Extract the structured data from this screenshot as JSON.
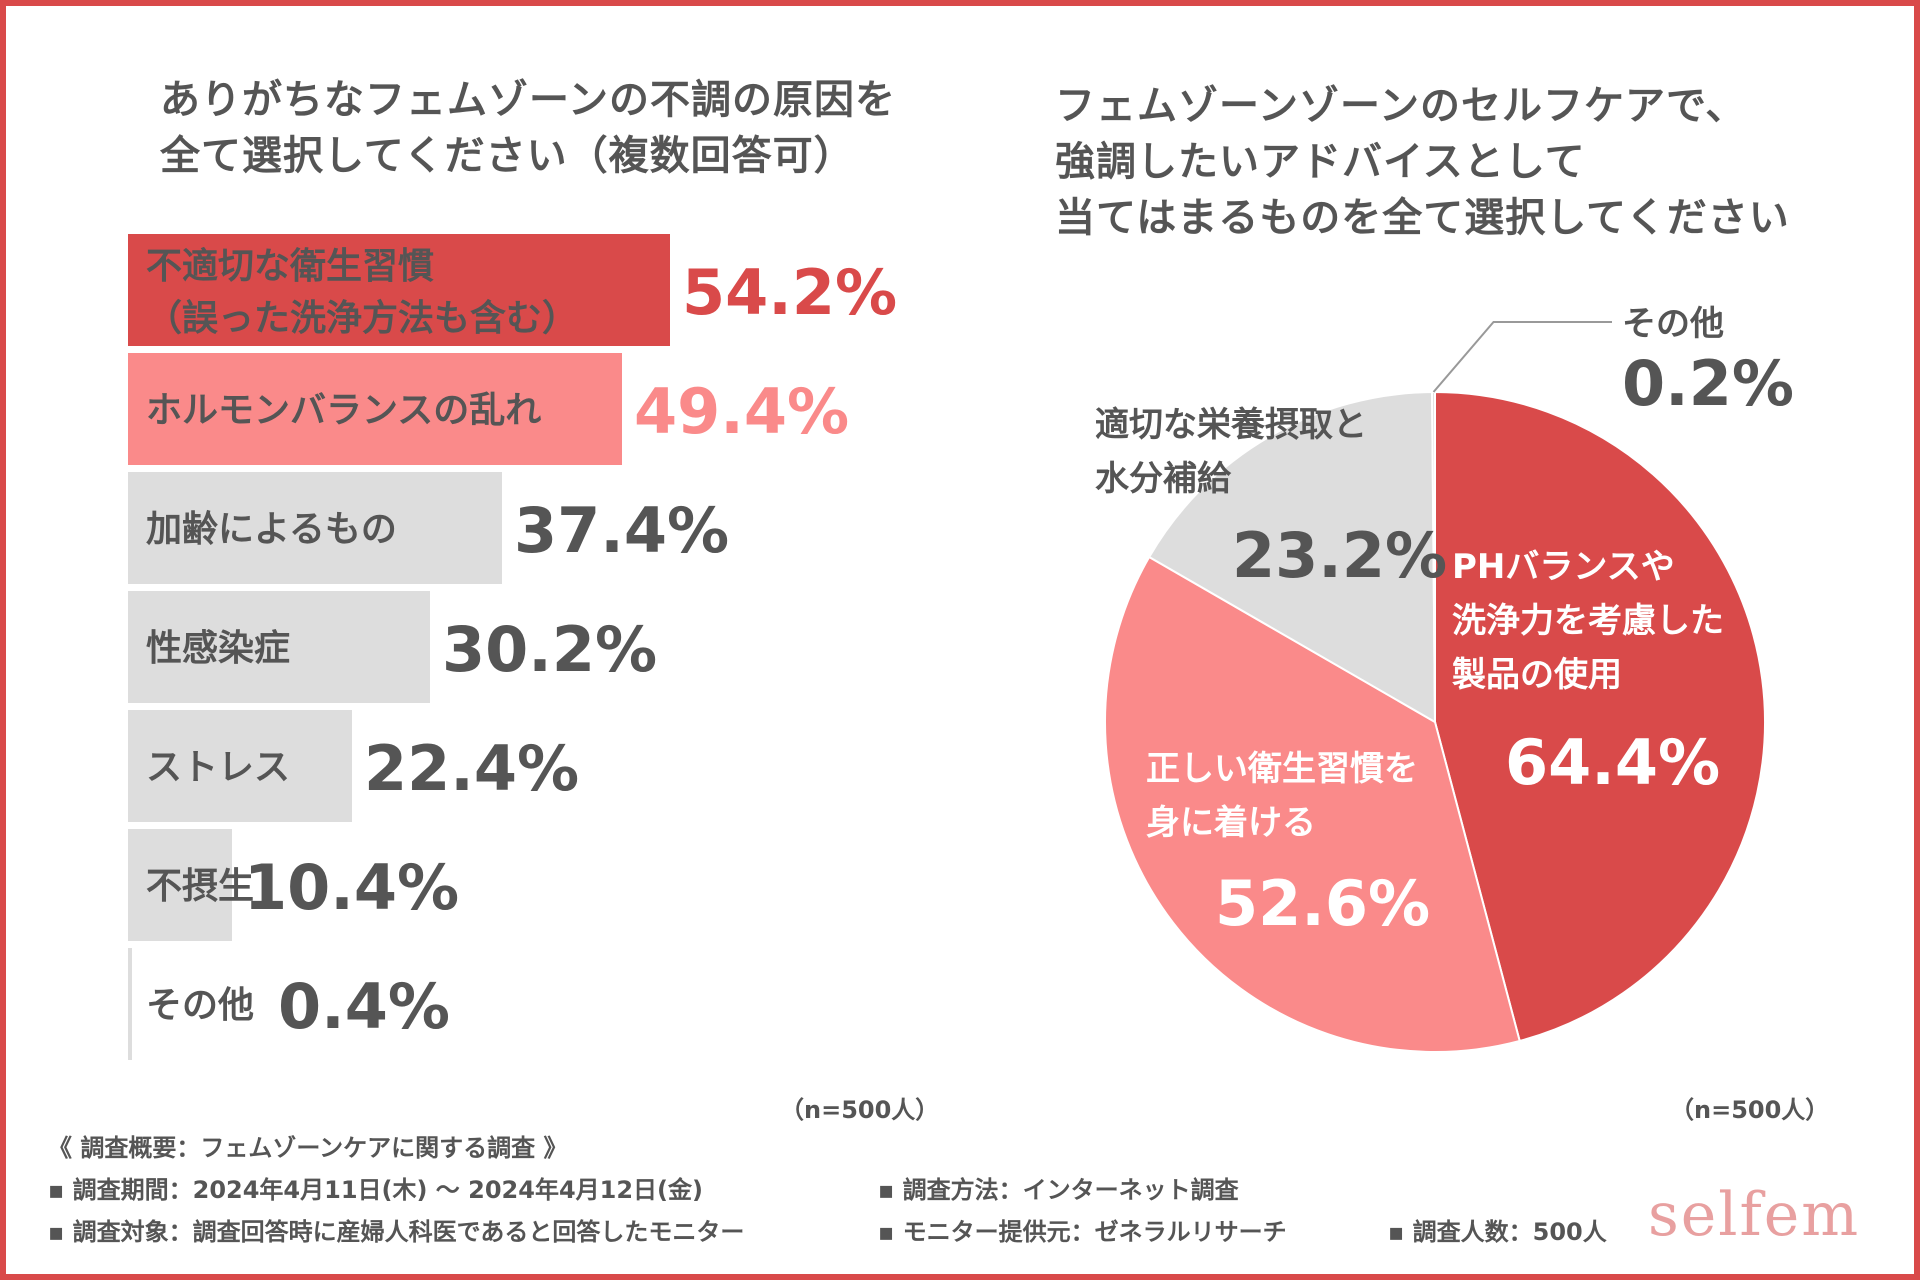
{
  "colors": {
    "frame": "#d94a4a",
    "accent_dark": "#d94a4a",
    "accent_light": "#fa8a8a",
    "neutral_bar": "#dddddd",
    "text": "#555555",
    "logo": "#e8a0a0"
  },
  "chart_data": [
    {
      "type": "bar",
      "orientation": "horizontal",
      "title": "ありがちなフェムゾーンの不調の原因を\n全て選択してください（複数回答可）",
      "categories": [
        "不適切な衛生習慣\n（誤った洗浄方法も含む）",
        "ホルモンバランスの乱れ",
        "加齢によるもの",
        "性感染症",
        "ストレス",
        "不摂生",
        "その他"
      ],
      "values": [
        54.2,
        49.4,
        37.4,
        30.2,
        22.4,
        10.4,
        0.4
      ],
      "value_labels": [
        "54.2%",
        "49.4%",
        "37.4%",
        "30.2%",
        "22.4%",
        "10.4%",
        "0.4%"
      ],
      "xlim": [
        0,
        100
      ],
      "note": "（n=500人）"
    },
    {
      "type": "pie",
      "title": "フェムゾーンゾーンのセルフケアで、\n強調したいアドバイスとして\n当てはまるものを全て選択してください",
      "labels": [
        "PHバランスや\n洗浄力を考慮した\n製品の使用",
        "正しい衛生習慣を\n身に着ける",
        "適切な栄養摂取と\n水分補給",
        "その他"
      ],
      "values": [
        64.4,
        52.6,
        23.2,
        0.2
      ],
      "value_labels": [
        "64.4%",
        "52.6%",
        "23.2%",
        "0.2%"
      ],
      "note": "（n=500人）"
    }
  ],
  "survey": {
    "heading": "《 調査概要：フェムゾーンケアに関する調査 》",
    "period": "▪ 調査期間：2024年4月11日(木) ～ 2024年4月12日(金)",
    "method": "▪ 調査方法：インターネット調査",
    "target": "▪ 調査対象：調査回答時に産婦人科医であると回答したモニター",
    "provider": "▪ モニター提供元：ゼネラルリサーチ",
    "count": "▪ 調査人数：500人"
  },
  "logo": "selfem"
}
